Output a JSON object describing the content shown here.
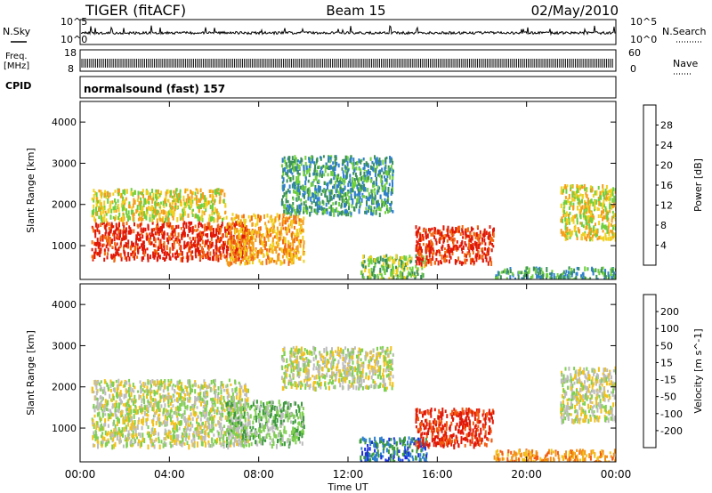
{
  "header": {
    "station": "TIGER (fitACF)",
    "beam": "Beam 15",
    "date": "02/May/2010"
  },
  "top_panels": {
    "nsky_label": "N.Sky",
    "nsearch_label": "N.Search",
    "noise_ticks_left": [
      "10^5",
      "10^0"
    ],
    "noise_ticks_right": [
      "10^5",
      "10^0"
    ],
    "freq_label_1": "Freq.",
    "freq_label_2": "[MHz]",
    "freq_ticks": [
      "18",
      "8"
    ],
    "nave_label": "Nave",
    "nave_ticks": [
      "60",
      "0"
    ],
    "cpid_label": "CPID",
    "cpid_text": "normalsound (fast) 157"
  },
  "chart_data": [
    {
      "type": "heatmap",
      "title": "",
      "xlabel": "Time UT",
      "ylabel": "Slant Range [km]",
      "x_tick_labels": [
        "00:00",
        "04:00",
        "08:00",
        "12:00",
        "16:00",
        "20:00",
        "00:00"
      ],
      "x_range_hours": [
        0,
        24
      ],
      "y_ticks": [
        1000,
        2000,
        3000,
        4000
      ],
      "y_range_km": [
        180,
        4500
      ],
      "colorbar": {
        "label": "Power [dB]",
        "tick_labels": [
          "4",
          "8",
          "12",
          "16",
          "20",
          "24",
          "28"
        ],
        "colors": [
          "#1c2de0",
          "#2e7fd0",
          "#3a8f5a",
          "#6fcf3f",
          "#f0d020",
          "#f59d1a",
          "#f26a12",
          "#e01808"
        ]
      },
      "regions": [
        {
          "t": [
            0.5,
            7.5
          ],
          "r": [
            700,
            1600
          ],
          "level": 7
        },
        {
          "t": [
            0.5,
            6.5
          ],
          "r": [
            1650,
            2400
          ],
          "level": 4
        },
        {
          "t": [
            6.5,
            10.0
          ],
          "r": [
            600,
            1800
          ],
          "level": 5
        },
        {
          "t": [
            9.0,
            14.0
          ],
          "r": [
            1800,
            3200
          ],
          "level": 2
        },
        {
          "t": [
            12.5,
            15.5
          ],
          "r": [
            200,
            800
          ],
          "level": 3
        },
        {
          "t": [
            15.0,
            18.5
          ],
          "r": [
            600,
            1500
          ],
          "level": 7
        },
        {
          "t": [
            18.5,
            24.0
          ],
          "r": [
            200,
            500
          ],
          "level": 2
        },
        {
          "t": [
            21.5,
            24.0
          ],
          "r": [
            1200,
            2500
          ],
          "level": 4
        }
      ]
    },
    {
      "type": "heatmap",
      "title": "",
      "xlabel": "Time UT",
      "ylabel": "Slant Range [km]",
      "x_tick_labels": [
        "00:00",
        "04:00",
        "08:00",
        "12:00",
        "16:00",
        "20:00",
        "00:00"
      ],
      "x_range_hours": [
        0,
        24
      ],
      "y_ticks": [
        1000,
        2000,
        3000,
        4000
      ],
      "y_range_km": [
        180,
        4500
      ],
      "colorbar": {
        "label": "Velocity [m s^-1]",
        "tick_labels": [
          "200",
          "100",
          "50",
          "15",
          "-15",
          "-50",
          "-100",
          "-200"
        ],
        "colors": [
          "#1c2de0",
          "#2e7fd0",
          "#3a9a3a",
          "#7fd050",
          "#bcbcbc",
          "#f2c21a",
          "#f39018",
          "#f25a12",
          "#e01808"
        ]
      },
      "regions": [
        {
          "t": [
            0.5,
            7.5
          ],
          "r": [
            600,
            2200
          ],
          "level": 4
        },
        {
          "t": [
            6.5,
            10.0
          ],
          "r": [
            600,
            1700
          ],
          "level": 3
        },
        {
          "t": [
            9.0,
            14.0
          ],
          "r": [
            2000,
            3000
          ],
          "level": 4
        },
        {
          "t": [
            12.5,
            15.5
          ],
          "r": [
            200,
            800
          ],
          "level": 1
        },
        {
          "t": [
            15.0,
            18.5
          ],
          "r": [
            600,
            1500
          ],
          "level": 8
        },
        {
          "t": [
            18.5,
            24.0
          ],
          "r": [
            200,
            500
          ],
          "level": 6
        },
        {
          "t": [
            21.5,
            24.0
          ],
          "r": [
            1200,
            2500
          ],
          "level": 4
        }
      ]
    }
  ]
}
